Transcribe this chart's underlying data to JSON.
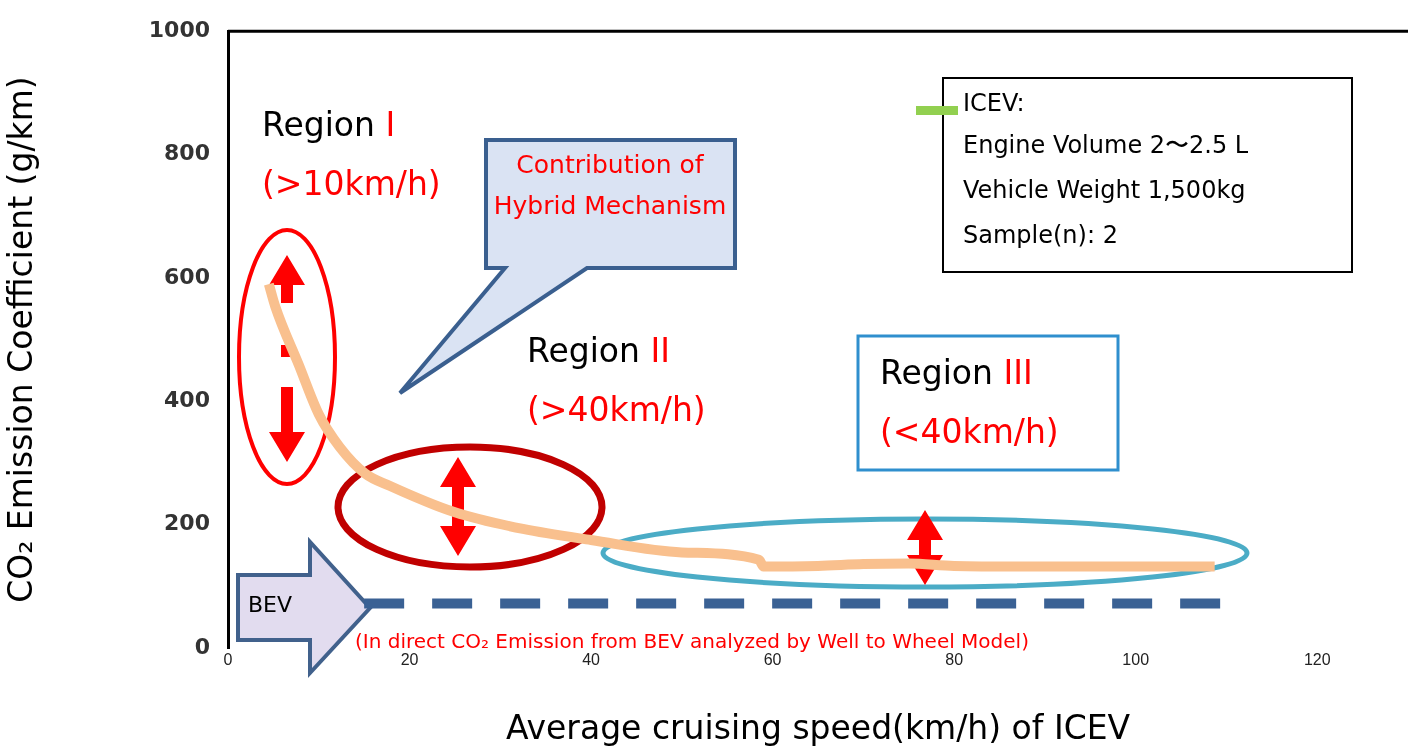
{
  "chart_data": {
    "type": "line",
    "xlabel": "Average cruising speed(km/h) of ICEV",
    "ylabel": "CO₂ Emission Coefficient (g/km)",
    "xlim": [
      0,
      130
    ],
    "ylim": [
      0,
      1000
    ],
    "xticks": [
      0,
      20,
      40,
      60,
      80,
      100,
      120
    ],
    "yticks": [
      0,
      200,
      400,
      600,
      800,
      1000
    ],
    "marker": "none",
    "series": [
      {
        "color": "#f9c08e",
        "line_style": "solid",
        "x": [
          4.5,
          5.2,
          7.8,
          10,
          12.3,
          15.1,
          17.8,
          25,
          32.5,
          40,
          50,
          58.5,
          59,
          65,
          70,
          75,
          80,
          90,
          100,
          108.7
        ],
        "values": [
          590,
          554,
          459,
          379,
          326,
          283,
          263,
          220,
          193,
          175,
          155,
          143,
          132,
          133,
          136,
          137,
          133,
          132,
          132,
          132
        ]
      },
      {
        "name": "BEV",
        "color": "#3a6194",
        "line_style": "dashed",
        "x": [
          15,
          110
        ],
        "values": [
          72,
          72
        ]
      }
    ],
    "annotations": [
      "Region",
      "I",
      "(>10km/h)",
      "Contribution of Hybrid Mechanism",
      "Region",
      "II",
      "(>40km/h)",
      "Region",
      "III",
      "(<40km/h)",
      "ICEV:",
      "Engine Volume 2〜2.5 L",
      "Vehicle Weight 1,500kg",
      "Sample(n):  2",
      "(In direct CO₂ Emission from BEV  analyzed by Well to Wheel Model)"
    ]
  }
}
